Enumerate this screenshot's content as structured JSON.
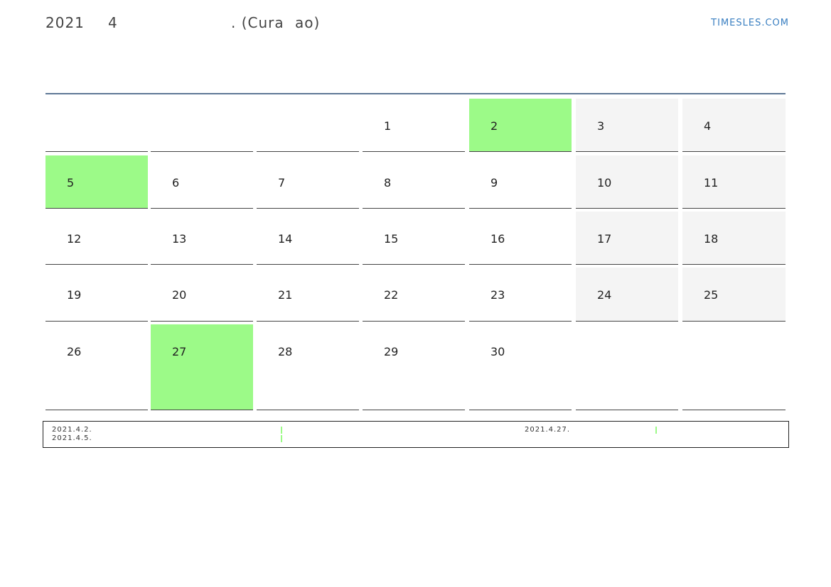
{
  "header": {
    "title_parts": [
      "2021",
      "4",
      ". (Cura",
      "ao)"
    ],
    "site": "TIMESLES.COM"
  },
  "calendar": {
    "weeks": [
      [
        null,
        null,
        null,
        1,
        2,
        3,
        4
      ],
      [
        5,
        6,
        7,
        8,
        9,
        10,
        11
      ],
      [
        12,
        13,
        14,
        15,
        16,
        17,
        18
      ],
      [
        19,
        20,
        21,
        22,
        23,
        24,
        25
      ],
      [
        26,
        27,
        28,
        29,
        30,
        null,
        null
      ]
    ],
    "holidays": [
      2,
      5,
      27
    ],
    "holiday_color": "#9cfa88",
    "weekend_color": "#f4f4f4"
  },
  "notes": [
    "2021.4.2.",
    "2021.4.5.",
    "2021.4.27."
  ]
}
